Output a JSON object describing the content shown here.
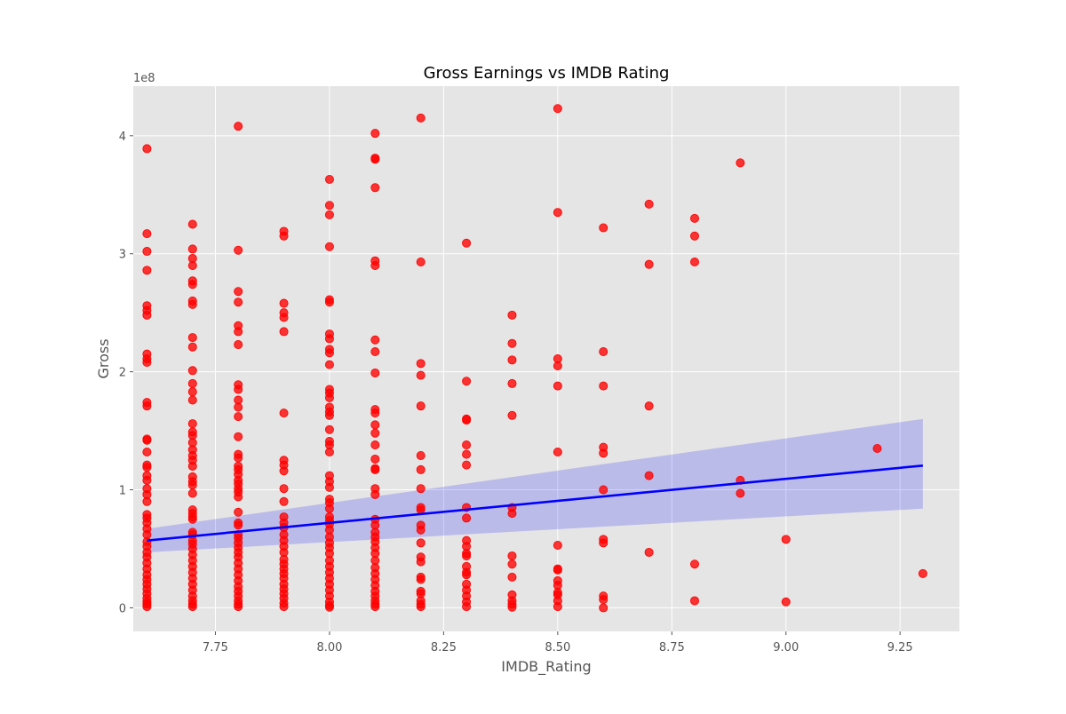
{
  "chart_data": {
    "type": "scatter",
    "title": "Gross Earnings vs IMDB Rating",
    "xlabel": "IMDB_Rating",
    "ylabel": "Gross",
    "y_offset_label": "1e8",
    "xlim": [
      7.57,
      9.38
    ],
    "ylim": [
      -20000000,
      442000000
    ],
    "x_ticks": [
      7.75,
      8.0,
      8.25,
      8.5,
      8.75,
      9.0,
      9.25
    ],
    "x_tick_labels": [
      "7.75",
      "8.00",
      "8.25",
      "8.50",
      "8.75",
      "9.00",
      "9.25"
    ],
    "y_ticks": [
      0,
      100000000,
      200000000,
      300000000,
      400000000
    ],
    "y_tick_labels": [
      "0",
      "1",
      "2",
      "3",
      "4"
    ],
    "grid": true,
    "style": "ggplot",
    "point_color": "#ff0000",
    "line_color": "#0000ff",
    "band_color": "#0000ff",
    "regression": {
      "x": [
        7.6,
        9.3
      ],
      "y": [
        57000000,
        120500000
      ],
      "ci_lower": [
        47000000,
        84000000
      ],
      "ci_upper": [
        67000000,
        160000000
      ]
    },
    "points": [
      [
        7.6,
        389000000
      ],
      [
        7.6,
        317000000
      ],
      [
        7.6,
        302000000
      ],
      [
        7.6,
        286000000
      ],
      [
        7.6,
        256000000
      ],
      [
        7.6,
        252000000
      ],
      [
        7.6,
        248000000
      ],
      [
        7.6,
        215000000
      ],
      [
        7.6,
        211000000
      ],
      [
        7.6,
        208000000
      ],
      [
        7.6,
        174000000
      ],
      [
        7.6,
        171000000
      ],
      [
        7.6,
        143000000
      ],
      [
        7.6,
        142000000
      ],
      [
        7.6,
        132000000
      ],
      [
        7.6,
        121000000
      ],
      [
        7.6,
        119000000
      ],
      [
        7.6,
        112000000
      ],
      [
        7.6,
        108000000
      ],
      [
        7.6,
        101000000
      ],
      [
        7.6,
        96000000
      ],
      [
        7.6,
        90000000
      ],
      [
        7.6,
        79000000
      ],
      [
        7.6,
        76000000
      ],
      [
        7.6,
        72000000
      ],
      [
        7.6,
        67000000
      ],
      [
        7.6,
        62000000
      ],
      [
        7.6,
        56000000
      ],
      [
        7.6,
        52000000
      ],
      [
        7.6,
        47000000
      ],
      [
        7.6,
        43000000
      ],
      [
        7.6,
        38000000
      ],
      [
        7.6,
        33000000
      ],
      [
        7.6,
        28000000
      ],
      [
        7.6,
        24000000
      ],
      [
        7.6,
        20000000
      ],
      [
        7.6,
        16000000
      ],
      [
        7.6,
        12000000
      ],
      [
        7.6,
        8000000
      ],
      [
        7.6,
        5000000
      ],
      [
        7.6,
        3000000
      ],
      [
        7.6,
        1000000
      ],
      [
        7.7,
        325000000
      ],
      [
        7.7,
        304000000
      ],
      [
        7.7,
        296000000
      ],
      [
        7.7,
        290000000
      ],
      [
        7.7,
        277000000
      ],
      [
        7.7,
        274000000
      ],
      [
        7.7,
        260000000
      ],
      [
        7.7,
        257000000
      ],
      [
        7.7,
        229000000
      ],
      [
        7.7,
        221000000
      ],
      [
        7.7,
        201000000
      ],
      [
        7.7,
        190000000
      ],
      [
        7.7,
        183000000
      ],
      [
        7.7,
        176000000
      ],
      [
        7.7,
        156000000
      ],
      [
        7.7,
        149000000
      ],
      [
        7.7,
        146000000
      ],
      [
        7.7,
        140000000
      ],
      [
        7.7,
        134000000
      ],
      [
        7.7,
        129000000
      ],
      [
        7.7,
        125000000
      ],
      [
        7.7,
        120000000
      ],
      [
        7.7,
        111000000
      ],
      [
        7.7,
        107000000
      ],
      [
        7.7,
        104000000
      ],
      [
        7.7,
        97000000
      ],
      [
        7.7,
        83000000
      ],
      [
        7.7,
        80000000
      ],
      [
        7.7,
        77000000
      ],
      [
        7.7,
        75000000
      ],
      [
        7.7,
        64000000
      ],
      [
        7.7,
        62000000
      ],
      [
        7.7,
        57000000
      ],
      [
        7.7,
        54000000
      ],
      [
        7.7,
        50000000
      ],
      [
        7.7,
        45000000
      ],
      [
        7.7,
        40000000
      ],
      [
        7.7,
        35000000
      ],
      [
        7.7,
        30000000
      ],
      [
        7.7,
        25000000
      ],
      [
        7.7,
        20000000
      ],
      [
        7.7,
        15000000
      ],
      [
        7.7,
        10000000
      ],
      [
        7.7,
        6000000
      ],
      [
        7.7,
        3000000
      ],
      [
        7.7,
        1000000
      ],
      [
        7.8,
        408000000
      ],
      [
        7.8,
        303000000
      ],
      [
        7.8,
        268000000
      ],
      [
        7.8,
        259000000
      ],
      [
        7.8,
        239000000
      ],
      [
        7.8,
        234000000
      ],
      [
        7.8,
        223000000
      ],
      [
        7.8,
        189000000
      ],
      [
        7.8,
        185000000
      ],
      [
        7.8,
        176000000
      ],
      [
        7.8,
        170000000
      ],
      [
        7.8,
        162000000
      ],
      [
        7.8,
        145000000
      ],
      [
        7.8,
        130000000
      ],
      [
        7.8,
        127000000
      ],
      [
        7.8,
        120000000
      ],
      [
        7.8,
        117000000
      ],
      [
        7.8,
        113000000
      ],
      [
        7.8,
        108000000
      ],
      [
        7.8,
        105000000
      ],
      [
        7.8,
        101000000
      ],
      [
        7.8,
        98000000
      ],
      [
        7.8,
        94000000
      ],
      [
        7.8,
        81000000
      ],
      [
        7.8,
        72000000
      ],
      [
        7.8,
        70000000
      ],
      [
        7.8,
        62000000
      ],
      [
        7.8,
        59000000
      ],
      [
        7.8,
        55000000
      ],
      [
        7.8,
        51000000
      ],
      [
        7.8,
        47000000
      ],
      [
        7.8,
        43000000
      ],
      [
        7.8,
        38000000
      ],
      [
        7.8,
        33000000
      ],
      [
        7.8,
        28000000
      ],
      [
        7.8,
        23000000
      ],
      [
        7.8,
        18000000
      ],
      [
        7.8,
        14000000
      ],
      [
        7.8,
        10000000
      ],
      [
        7.8,
        6000000
      ],
      [
        7.8,
        3000000
      ],
      [
        7.8,
        1000000
      ],
      [
        7.9,
        319000000
      ],
      [
        7.9,
        315000000
      ],
      [
        7.9,
        258000000
      ],
      [
        7.9,
        250000000
      ],
      [
        7.9,
        246000000
      ],
      [
        7.9,
        234000000
      ],
      [
        7.9,
        165000000
      ],
      [
        7.9,
        125000000
      ],
      [
        7.9,
        121000000
      ],
      [
        7.9,
        116000000
      ],
      [
        7.9,
        101000000
      ],
      [
        7.9,
        90000000
      ],
      [
        7.9,
        77000000
      ],
      [
        7.9,
        72000000
      ],
      [
        7.9,
        68000000
      ],
      [
        7.9,
        62000000
      ],
      [
        7.9,
        57000000
      ],
      [
        7.9,
        52000000
      ],
      [
        7.9,
        47000000
      ],
      [
        7.9,
        41000000
      ],
      [
        7.9,
        37000000
      ],
      [
        7.9,
        33000000
      ],
      [
        7.9,
        29000000
      ],
      [
        7.9,
        25000000
      ],
      [
        7.9,
        20000000
      ],
      [
        7.9,
        16000000
      ],
      [
        7.9,
        12000000
      ],
      [
        7.9,
        8000000
      ],
      [
        7.9,
        4000000
      ],
      [
        7.9,
        1000000
      ],
      [
        8.0,
        363000000
      ],
      [
        8.0,
        341000000
      ],
      [
        8.0,
        333000000
      ],
      [
        8.0,
        306000000
      ],
      [
        8.0,
        261000000
      ],
      [
        8.0,
        259000000
      ],
      [
        8.0,
        232000000
      ],
      [
        8.0,
        228000000
      ],
      [
        8.0,
        219000000
      ],
      [
        8.0,
        216000000
      ],
      [
        8.0,
        206000000
      ],
      [
        8.0,
        185000000
      ],
      [
        8.0,
        182000000
      ],
      [
        8.0,
        178000000
      ],
      [
        8.0,
        170000000
      ],
      [
        8.0,
        166000000
      ],
      [
        8.0,
        163000000
      ],
      [
        8.0,
        151000000
      ],
      [
        8.0,
        141000000
      ],
      [
        8.0,
        138000000
      ],
      [
        8.0,
        132000000
      ],
      [
        8.0,
        112000000
      ],
      [
        8.0,
        107000000
      ],
      [
        8.0,
        102000000
      ],
      [
        8.0,
        92000000
      ],
      [
        8.0,
        89000000
      ],
      [
        8.0,
        84000000
      ],
      [
        8.0,
        77000000
      ],
      [
        8.0,
        74000000
      ],
      [
        8.0,
        71000000
      ],
      [
        8.0,
        66000000
      ],
      [
        8.0,
        60000000
      ],
      [
        8.0,
        55000000
      ],
      [
        8.0,
        51000000
      ],
      [
        8.0,
        46000000
      ],
      [
        8.0,
        40000000
      ],
      [
        8.0,
        35000000
      ],
      [
        8.0,
        30000000
      ],
      [
        8.0,
        25000000
      ],
      [
        8.0,
        20000000
      ],
      [
        8.0,
        15000000
      ],
      [
        8.0,
        10000000
      ],
      [
        8.0,
        5000000
      ],
      [
        8.0,
        2000000
      ],
      [
        8.0,
        500000
      ],
      [
        8.1,
        402000000
      ],
      [
        8.1,
        381000000
      ],
      [
        8.1,
        380000000
      ],
      [
        8.1,
        356000000
      ],
      [
        8.1,
        294000000
      ],
      [
        8.1,
        290000000
      ],
      [
        8.1,
        227000000
      ],
      [
        8.1,
        217000000
      ],
      [
        8.1,
        199000000
      ],
      [
        8.1,
        168000000
      ],
      [
        8.1,
        165000000
      ],
      [
        8.1,
        155000000
      ],
      [
        8.1,
        148000000
      ],
      [
        8.1,
        138000000
      ],
      [
        8.1,
        126000000
      ],
      [
        8.1,
        118000000
      ],
      [
        8.1,
        117000000
      ],
      [
        8.1,
        101000000
      ],
      [
        8.1,
        96000000
      ],
      [
        8.1,
        75000000
      ],
      [
        8.1,
        70000000
      ],
      [
        8.1,
        64000000
      ],
      [
        8.1,
        60000000
      ],
      [
        8.1,
        56000000
      ],
      [
        8.1,
        51000000
      ],
      [
        8.1,
        46000000
      ],
      [
        8.1,
        40000000
      ],
      [
        8.1,
        34000000
      ],
      [
        8.1,
        29000000
      ],
      [
        8.1,
        24000000
      ],
      [
        8.1,
        19000000
      ],
      [
        8.1,
        14000000
      ],
      [
        8.1,
        10000000
      ],
      [
        8.1,
        6000000
      ],
      [
        8.1,
        3000000
      ],
      [
        8.1,
        1000000
      ],
      [
        8.2,
        415000000
      ],
      [
        8.2,
        293000000
      ],
      [
        8.2,
        207000000
      ],
      [
        8.2,
        197000000
      ],
      [
        8.2,
        171000000
      ],
      [
        8.2,
        129000000
      ],
      [
        8.2,
        117000000
      ],
      [
        8.2,
        101000000
      ],
      [
        8.2,
        85000000
      ],
      [
        8.2,
        83000000
      ],
      [
        8.2,
        70000000
      ],
      [
        8.2,
        66000000
      ],
      [
        8.2,
        55000000
      ],
      [
        8.2,
        43000000
      ],
      [
        8.2,
        39000000
      ],
      [
        8.2,
        26000000
      ],
      [
        8.2,
        24000000
      ],
      [
        8.2,
        14000000
      ],
      [
        8.2,
        12000000
      ],
      [
        8.2,
        6000000
      ],
      [
        8.2,
        3000000
      ],
      [
        8.2,
        1000000
      ],
      [
        8.3,
        309000000
      ],
      [
        8.3,
        192000000
      ],
      [
        8.3,
        160000000
      ],
      [
        8.3,
        159000000
      ],
      [
        8.3,
        138000000
      ],
      [
        8.3,
        130000000
      ],
      [
        8.3,
        121000000
      ],
      [
        8.3,
        85000000
      ],
      [
        8.3,
        76000000
      ],
      [
        8.3,
        57000000
      ],
      [
        8.3,
        52000000
      ],
      [
        8.3,
        46000000
      ],
      [
        8.3,
        44000000
      ],
      [
        8.3,
        35000000
      ],
      [
        8.3,
        30000000
      ],
      [
        8.3,
        28000000
      ],
      [
        8.3,
        20000000
      ],
      [
        8.3,
        15000000
      ],
      [
        8.3,
        10000000
      ],
      [
        8.3,
        5000000
      ],
      [
        8.3,
        1000000
      ],
      [
        8.4,
        248000000
      ],
      [
        8.4,
        224000000
      ],
      [
        8.4,
        210000000
      ],
      [
        8.4,
        190000000
      ],
      [
        8.4,
        163000000
      ],
      [
        8.4,
        85000000
      ],
      [
        8.4,
        80000000
      ],
      [
        8.4,
        44000000
      ],
      [
        8.4,
        37000000
      ],
      [
        8.4,
        26000000
      ],
      [
        8.4,
        11000000
      ],
      [
        8.4,
        6000000
      ],
      [
        8.4,
        3000000
      ],
      [
        8.4,
        500000
      ],
      [
        8.5,
        423000000
      ],
      [
        8.5,
        335000000
      ],
      [
        8.5,
        211000000
      ],
      [
        8.5,
        205000000
      ],
      [
        8.5,
        188000000
      ],
      [
        8.5,
        132000000
      ],
      [
        8.5,
        53000000
      ],
      [
        8.5,
        33000000
      ],
      [
        8.5,
        32000000
      ],
      [
        8.5,
        23000000
      ],
      [
        8.5,
        19000000
      ],
      [
        8.5,
        13000000
      ],
      [
        8.5,
        11000000
      ],
      [
        8.5,
        6000000
      ],
      [
        8.5,
        1000000
      ],
      [
        8.6,
        322000000
      ],
      [
        8.6,
        217000000
      ],
      [
        8.6,
        188000000
      ],
      [
        8.6,
        136000000
      ],
      [
        8.6,
        131000000
      ],
      [
        8.6,
        100000000
      ],
      [
        8.6,
        58000000
      ],
      [
        8.6,
        55000000
      ],
      [
        8.6,
        10000000
      ],
      [
        8.6,
        7000000
      ],
      [
        8.6,
        0
      ],
      [
        8.7,
        342000000
      ],
      [
        8.7,
        291000000
      ],
      [
        8.7,
        171000000
      ],
      [
        8.7,
        112000000
      ],
      [
        8.7,
        47000000
      ],
      [
        8.8,
        330000000
      ],
      [
        8.8,
        315000000
      ],
      [
        8.8,
        293000000
      ],
      [
        8.8,
        37000000
      ],
      [
        8.8,
        6000000
      ],
      [
        8.9,
        377000000
      ],
      [
        8.9,
        108000000
      ],
      [
        8.9,
        97000000
      ],
      [
        9.0,
        58000000
      ],
      [
        9.0,
        5000000
      ],
      [
        9.2,
        135000000
      ],
      [
        9.3,
        29000000
      ]
    ]
  }
}
